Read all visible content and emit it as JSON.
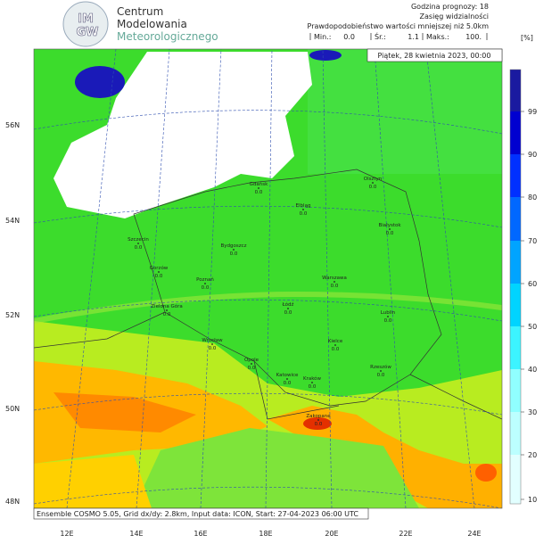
{
  "logo": {
    "mark_top": "IM",
    "mark_bottom": "GW",
    "name": [
      "Centrum",
      "Modelowania",
      "Meteorologicznego"
    ]
  },
  "header": {
    "lines": [
      "Godzina prognozy: 18",
      "Zasięg widzialności",
      "Prawdopodobieństwo wartości mniejszej niż 5.0km"
    ],
    "stats": [
      {
        "label": "Min.:",
        "value": "0.0"
      },
      {
        "label": "Śr.:",
        "value": "1.1"
      },
      {
        "label": "Maks.:",
        "value": "100."
      }
    ],
    "unit": "[%]"
  },
  "map": {
    "date": "Piątek, 28 kwietnia 2023, 00:00",
    "lat_labels": [
      "56N",
      "54N",
      "52N",
      "50N",
      "48N"
    ],
    "lon_labels": [
      "12E",
      "14E",
      "16E",
      "18E",
      "20E",
      "22E",
      "24E"
    ],
    "cities": [
      {
        "name": "Gdańsk",
        "value": "0.0"
      },
      {
        "name": "Elbląg",
        "value": "0.0"
      },
      {
        "name": "Olsztyn",
        "value": "0.0"
      },
      {
        "name": "Białystok",
        "value": "0.0"
      },
      {
        "name": "Szczecin",
        "value": "0.0"
      },
      {
        "name": "Bydgoszcz",
        "value": "0.0"
      },
      {
        "name": "Gorzów",
        "value": "0.0"
      },
      {
        "name": "Poznań",
        "value": "0.0"
      },
      {
        "name": "Zielona Góra",
        "value": "0.0"
      },
      {
        "name": "Warszawa",
        "value": "0.0"
      },
      {
        "name": "Łódź",
        "value": "0.0"
      },
      {
        "name": "Lublin",
        "value": "0.0"
      },
      {
        "name": "Kielce",
        "value": "0.0"
      },
      {
        "name": "Wrocław",
        "value": "0.0"
      },
      {
        "name": "Opole",
        "value": "0.0"
      },
      {
        "name": "Katowice",
        "value": "0.0"
      },
      {
        "name": "Kraków",
        "value": "0.0"
      },
      {
        "name": "Rzeszów",
        "value": "0.0"
      },
      {
        "name": "Zakopane",
        "value": "0.0"
      }
    ],
    "footer": "Ensemble COSMO 5.05, Grid dx/dy: 2.8km, Input data: ICON, Start: 27-04-2023 06:00 UTC"
  },
  "colorbar": {
    "ticks": [
      "99",
      "90",
      "80",
      "70",
      "60",
      "50",
      "40",
      "30",
      "20",
      "10"
    ]
  }
}
